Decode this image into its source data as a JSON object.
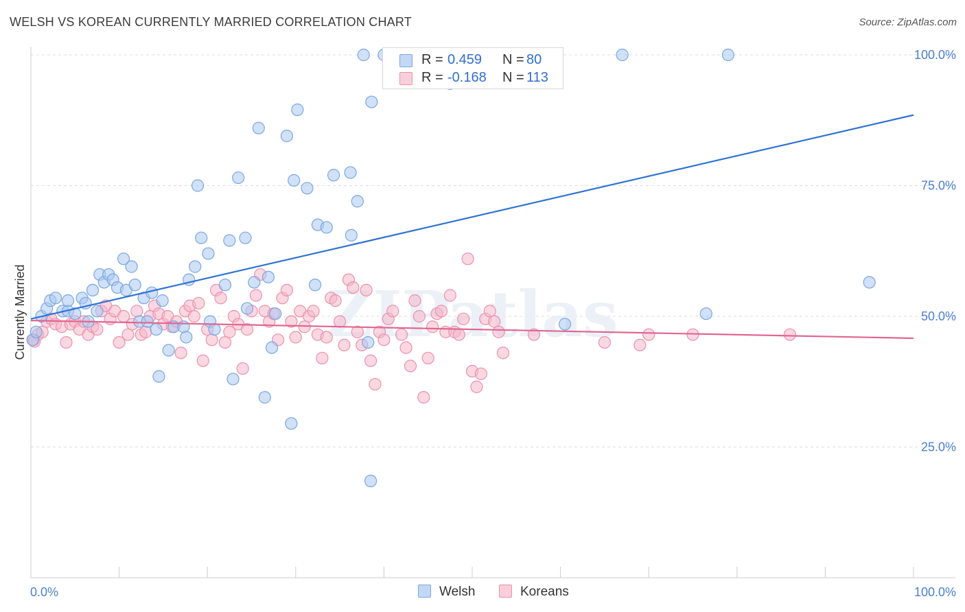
{
  "title": "WELSH VS KOREAN CURRENTLY MARRIED CORRELATION CHART",
  "source": "Source: ZipAtlas.com",
  "watermark": "ZIPatlas",
  "legend": {
    "welsh": {
      "r_label": "R =",
      "r_value": "0.459",
      "n_label": "N =",
      "n_value": "80"
    },
    "koreans": {
      "r_label": "R =",
      "r_value": "-0.168",
      "n_label": "N =",
      "n_value": "113"
    }
  },
  "bottom_legend": {
    "welsh": "Welsh",
    "koreans": "Koreans"
  },
  "colors": {
    "welsh_fill": "#a9c8f2",
    "welsh_stroke": "#7aa6e0",
    "welsh_line": "#2f72d4",
    "korean_fill": "#f5b8cb",
    "korean_stroke": "#ec8fad",
    "korean_line": "#e26690",
    "axis_text": "#4a7fd0",
    "grid": "#dddddd"
  },
  "chart_data": {
    "type": "scatter",
    "title": "WELSH VS KOREAN CURRENTLY MARRIED CORRELATION CHART",
    "xlabel": "",
    "ylabel": "Currently Married",
    "xlim": [
      0,
      100
    ],
    "ylim": [
      0,
      100
    ],
    "x_tick_labels": [
      "0.0%",
      "100.0%"
    ],
    "y_ticks": [
      25,
      50,
      75,
      100
    ],
    "y_tick_labels": [
      "25.0%",
      "50.0%",
      "75.0%",
      "100.0%"
    ],
    "grid": true,
    "legend_position": "top-center",
    "series": [
      {
        "name": "Welsh",
        "r": 0.459,
        "n": 80,
        "trend": {
          "x": [
            0,
            100
          ],
          "y": [
            49.5,
            88.5
          ]
        },
        "points": [
          [
            0.2,
            45.5
          ],
          [
            0.6,
            47
          ],
          [
            1.2,
            50
          ],
          [
            1.8,
            51.5
          ],
          [
            2.2,
            53
          ],
          [
            2.8,
            53.5
          ],
          [
            3.6,
            51
          ],
          [
            4.2,
            51
          ],
          [
            4.2,
            53
          ],
          [
            5,
            50.5
          ],
          [
            5.8,
            53.5
          ],
          [
            6.2,
            52.5
          ],
          [
            6.5,
            49
          ],
          [
            7,
            55
          ],
          [
            7.5,
            51
          ],
          [
            7.8,
            58
          ],
          [
            8.3,
            56.5
          ],
          [
            8.8,
            58
          ],
          [
            9.3,
            57
          ],
          [
            9.8,
            55.5
          ],
          [
            10.5,
            61
          ],
          [
            10.8,
            55
          ],
          [
            11.4,
            59.5
          ],
          [
            11.8,
            56
          ],
          [
            12.3,
            49
          ],
          [
            12.8,
            53.5
          ],
          [
            13.2,
            49
          ],
          [
            13.7,
            54.5
          ],
          [
            14.2,
            47.5
          ],
          [
            14.5,
            38.5
          ],
          [
            14.9,
            53
          ],
          [
            15.6,
            43.5
          ],
          [
            16.2,
            48
          ],
          [
            17.3,
            48
          ],
          [
            17.6,
            46
          ],
          [
            17.9,
            57
          ],
          [
            18.6,
            59.5
          ],
          [
            18.9,
            75
          ],
          [
            19.3,
            65
          ],
          [
            20.1,
            62
          ],
          [
            20.3,
            49
          ],
          [
            20.8,
            47.5
          ],
          [
            22,
            56
          ],
          [
            22.5,
            64.5
          ],
          [
            22.9,
            38
          ],
          [
            23.5,
            76.5
          ],
          [
            24.3,
            65
          ],
          [
            24.5,
            51.5
          ],
          [
            25.3,
            56.5
          ],
          [
            25.8,
            86
          ],
          [
            26.5,
            34.5
          ],
          [
            26.9,
            57.5
          ],
          [
            27.3,
            44
          ],
          [
            27.7,
            50.5
          ],
          [
            29,
            84.5
          ],
          [
            29.5,
            29.5
          ],
          [
            29.8,
            76
          ],
          [
            30.2,
            89.5
          ],
          [
            31.3,
            74.5
          ],
          [
            32.2,
            56
          ],
          [
            32.5,
            67.5
          ],
          [
            33.5,
            67
          ],
          [
            34.3,
            77
          ],
          [
            36.2,
            77.5
          ],
          [
            36.3,
            65.5
          ],
          [
            37,
            72
          ],
          [
            38.2,
            45
          ],
          [
            38.5,
            18.5
          ],
          [
            38.6,
            91
          ],
          [
            40,
            100
          ],
          [
            41.5,
            97
          ],
          [
            43.4,
            97.5
          ],
          [
            47.5,
            94.5
          ],
          [
            54,
            100
          ],
          [
            60.5,
            48.5
          ],
          [
            67,
            100
          ],
          [
            76.5,
            50.5
          ],
          [
            79,
            100
          ],
          [
            95,
            56.5
          ],
          [
            37.7,
            100
          ]
        ]
      },
      {
        "name": "Koreans",
        "r": -0.168,
        "n": 113,
        "trend": {
          "x": [
            0,
            100
          ],
          "y": [
            49.2,
            45.8
          ]
        },
        "points": [
          [
            0.3,
            45.5
          ],
          [
            0.8,
            46.5
          ],
          [
            1.3,
            47
          ],
          [
            1.8,
            49
          ],
          [
            2.3,
            49.5
          ],
          [
            2.8,
            48.5
          ],
          [
            3.5,
            48
          ],
          [
            4,
            45
          ],
          [
            4.5,
            48.5
          ],
          [
            5,
            49
          ],
          [
            5.5,
            47.5
          ],
          [
            6,
            49
          ],
          [
            6.5,
            46.5
          ],
          [
            7,
            48
          ],
          [
            7.5,
            47.5
          ],
          [
            8,
            51
          ],
          [
            8.5,
            52
          ],
          [
            9,
            49.5
          ],
          [
            9.5,
            51
          ],
          [
            10,
            45
          ],
          [
            10.5,
            50
          ],
          [
            11,
            46.5
          ],
          [
            11.5,
            48.5
          ],
          [
            12,
            51
          ],
          [
            12.5,
            46.5
          ],
          [
            13,
            47
          ],
          [
            13.5,
            50
          ],
          [
            14,
            52
          ],
          [
            14.5,
            50.5
          ],
          [
            15,
            48.5
          ],
          [
            15.5,
            50
          ],
          [
            16,
            48
          ],
          [
            16.5,
            49
          ],
          [
            17,
            43
          ],
          [
            17.5,
            51
          ],
          [
            18,
            52
          ],
          [
            18.5,
            50
          ],
          [
            19,
            52.5
          ],
          [
            19.5,
            41.5
          ],
          [
            20,
            47.5
          ],
          [
            20.5,
            45.5
          ],
          [
            21,
            55
          ],
          [
            21.5,
            53.5
          ],
          [
            22,
            45
          ],
          [
            22.5,
            47
          ],
          [
            23,
            50
          ],
          [
            23.5,
            48.5
          ],
          [
            24,
            40
          ],
          [
            24.5,
            47.5
          ],
          [
            25,
            51
          ],
          [
            25.5,
            54
          ],
          [
            26,
            58
          ],
          [
            26.5,
            51
          ],
          [
            27,
            49
          ],
          [
            27.5,
            50.5
          ],
          [
            28,
            45.5
          ],
          [
            28.5,
            53.5
          ],
          [
            29,
            55
          ],
          [
            29.5,
            49
          ],
          [
            30,
            46
          ],
          [
            30.5,
            51
          ],
          [
            31,
            48
          ],
          [
            31.5,
            50
          ],
          [
            32,
            51
          ],
          [
            32.5,
            46.5
          ],
          [
            33,
            42
          ],
          [
            33.5,
            46
          ],
          [
            34,
            53.5
          ],
          [
            34.5,
            53
          ],
          [
            35,
            49
          ],
          [
            35.5,
            44.5
          ],
          [
            36,
            57
          ],
          [
            36.5,
            55.5
          ],
          [
            37,
            47
          ],
          [
            37.5,
            44.5
          ],
          [
            38,
            55
          ],
          [
            38.5,
            41.5
          ],
          [
            39,
            37
          ],
          [
            39.5,
            47
          ],
          [
            40,
            45.5
          ],
          [
            40.5,
            49.5
          ],
          [
            41,
            51
          ],
          [
            42,
            46.5
          ],
          [
            42.5,
            44
          ],
          [
            43,
            40.5
          ],
          [
            43.5,
            53
          ],
          [
            44,
            50
          ],
          [
            44.5,
            34.5
          ],
          [
            45,
            42
          ],
          [
            45.5,
            48
          ],
          [
            46,
            50.5
          ],
          [
            46.5,
            51
          ],
          [
            47,
            47
          ],
          [
            47.5,
            54
          ],
          [
            48,
            47
          ],
          [
            48.5,
            46.5
          ],
          [
            49,
            49.5
          ],
          [
            49.5,
            61
          ],
          [
            50,
            39.5
          ],
          [
            50.5,
            36.5
          ],
          [
            51,
            39
          ],
          [
            51.5,
            49.5
          ],
          [
            52,
            51
          ],
          [
            52.5,
            49
          ],
          [
            53,
            47
          ],
          [
            53.5,
            43
          ],
          [
            57,
            46.5
          ],
          [
            65,
            45
          ],
          [
            69,
            44.5
          ],
          [
            70,
            46.5
          ],
          [
            75,
            46.5
          ],
          [
            86,
            46.5
          ],
          [
            0.4,
            45.2
          ]
        ]
      }
    ]
  }
}
